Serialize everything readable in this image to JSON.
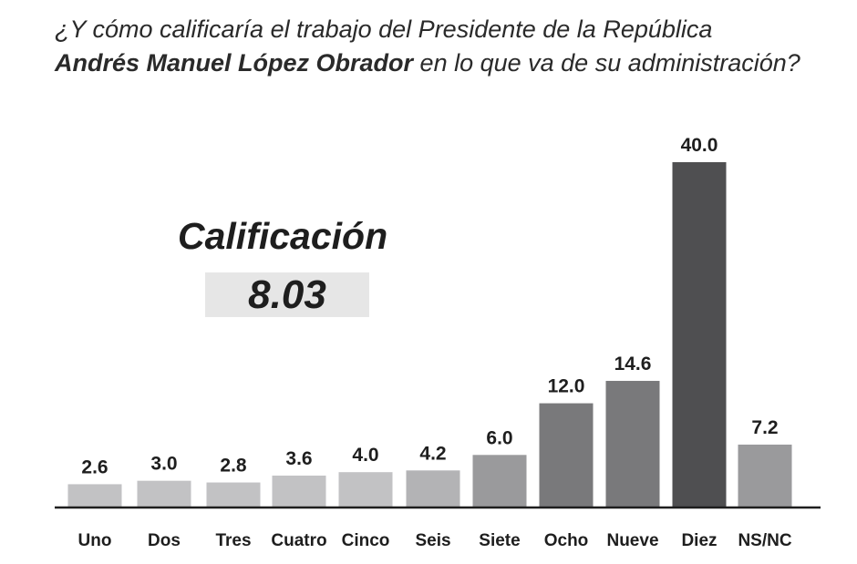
{
  "question": {
    "part1": "¿Y cómo calificaría el trabajo del Presidente de la República",
    "name": "Andrés Manuel López Obrador",
    "part2": " en lo que va de su administración?"
  },
  "score": {
    "label": "Calificación",
    "value": "8.03"
  },
  "chart_data": {
    "type": "bar",
    "categories": [
      "Uno",
      "Dos",
      "Tres",
      "Cuatro",
      "Cinco",
      "Seis",
      "Siete",
      "Ocho",
      "Nueve",
      "Diez",
      "NS/NC"
    ],
    "values": [
      2.6,
      3.0,
      2.8,
      3.6,
      4.0,
      4.2,
      6.0,
      12.0,
      14.6,
      40.0,
      7.2
    ],
    "value_labels": [
      "2.6",
      "3.0",
      "2.8",
      "3.6",
      "4.0",
      "4.2",
      "6.0",
      "12.0",
      "14.6",
      "40.0",
      "7.2"
    ],
    "colors": [
      "#c2c2c4",
      "#c2c2c4",
      "#c2c2c4",
      "#c2c2c4",
      "#c2c2c4",
      "#b3b3b5",
      "#9a9a9c",
      "#79797b",
      "#79797b",
      "#4f4f51",
      "#9a9a9c"
    ],
    "ylim": [
      0,
      40
    ],
    "grid": false,
    "legend": "none"
  }
}
